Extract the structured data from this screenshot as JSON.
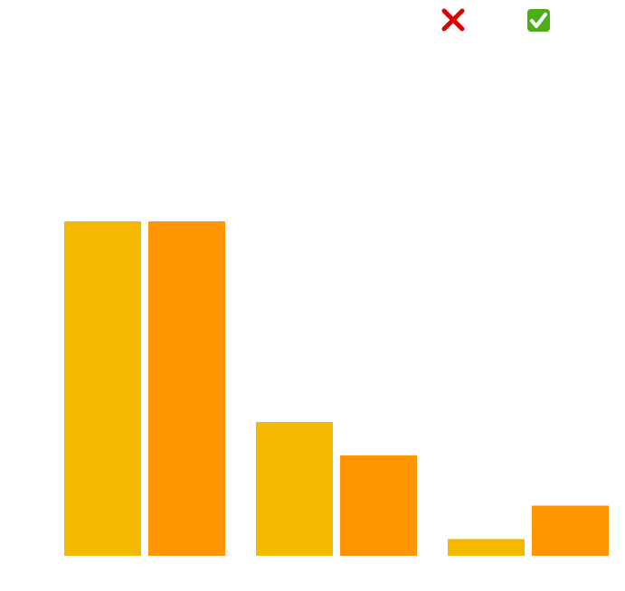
{
  "chart_data": {
    "type": "bar",
    "categories": [
      "",
      "",
      ""
    ],
    "series": [
      {
        "legend_icon": "cross-mark-icon",
        "color": "#F5B800",
        "values": [
          10.0,
          4.0,
          0.5
        ]
      },
      {
        "legend_icon": "check-mark-icon",
        "color": "#FF9500",
        "values": [
          10.0,
          3.0,
          1.5
        ]
      }
    ],
    "ylim": [
      0,
      10
    ],
    "grid": false,
    "legend_position": "top-right"
  },
  "legend": {
    "cross_mark_color": "#E00000",
    "check_box_color": "#4CAF1A",
    "check_mark_color": "#FFFFFF"
  }
}
